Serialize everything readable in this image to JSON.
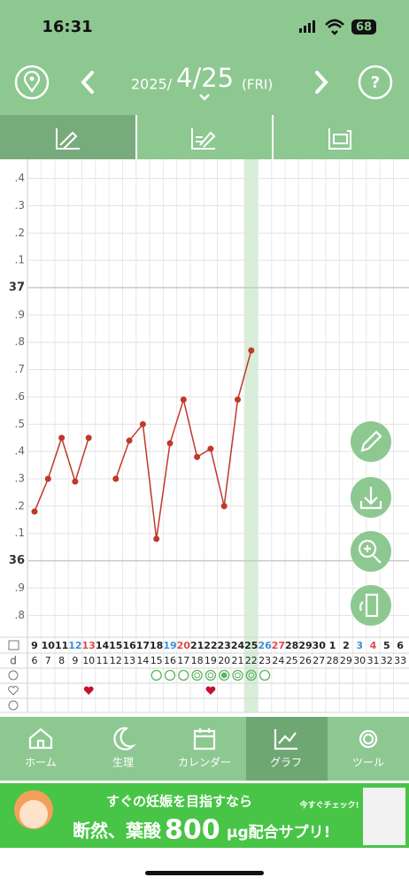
{
  "status_bar": {
    "time": "16:31",
    "battery": "68"
  },
  "header": {
    "year": "2025/",
    "date": "4/25",
    "weekday": "(FRI)"
  },
  "chart_data": {
    "type": "line",
    "color": "#c0392b",
    "categories": [
      "9",
      "10",
      "11",
      "12",
      "13",
      "14",
      "15",
      "16",
      "17",
      "18",
      "19",
      "20",
      "21",
      "22",
      "23",
      "24",
      "25",
      "26",
      "27",
      "28",
      "29",
      "30",
      "1",
      "2",
      "3",
      "4",
      "5",
      "6"
    ],
    "category_colors": [
      "#222",
      "#222",
      "#222",
      "#3b8ed8",
      "#e04848",
      "#222",
      "#222",
      "#222",
      "#222",
      "#222",
      "#3b8ed8",
      "#e04848",
      "#222",
      "#222",
      "#222",
      "#222",
      "#222",
      "#3b8ed8",
      "#e04848",
      "#222",
      "#222",
      "#222",
      "#222",
      "#222",
      "#3b8ed8",
      "#e04848",
      "#222",
      "#222"
    ],
    "cycle_label": "d",
    "cycle_days": [
      6,
      7,
      8,
      9,
      10,
      11,
      12,
      13,
      14,
      15,
      16,
      17,
      18,
      19,
      20,
      21,
      22,
      23,
      24,
      25,
      26,
      27,
      28,
      29,
      30,
      31,
      32,
      33
    ],
    "values": [
      36.18,
      36.3,
      36.45,
      36.29,
      36.45,
      null,
      36.3,
      36.44,
      36.5,
      36.08,
      36.43,
      36.59,
      36.38,
      36.41,
      36.2,
      36.59,
      36.77,
      null,
      null,
      null,
      null,
      null,
      null,
      null,
      null,
      null,
      null,
      null
    ],
    "ylim": [
      35.72,
      37.47
    ],
    "yticks": [
      {
        "value": 35.8,
        "label": ".8"
      },
      {
        "value": 35.9,
        "label": ".9"
      },
      36,
      {
        "value": 36.1,
        "label": ".1"
      },
      {
        "value": 36.2,
        "label": ".2"
      },
      {
        "value": 36.3,
        "label": ".3"
      },
      {
        "value": 36.4,
        "label": ".4"
      },
      {
        "value": 36.5,
        "label": ".5"
      },
      {
        "value": 36.6,
        "label": ".6"
      },
      {
        "value": 36.7,
        "label": ".7"
      },
      {
        "value": 36.8,
        "label": ".8"
      },
      {
        "value": 36.9,
        "label": ".9"
      },
      37,
      {
        "value": 37.1,
        "label": ".1"
      },
      {
        "value": 37.2,
        "label": ".2"
      },
      {
        "value": 37.3,
        "label": ".3"
      },
      {
        "value": 37.4,
        "label": ".4"
      }
    ],
    "grid": true
  },
  "tab_bar": {
    "items": [
      "ホーム",
      "生理",
      "カレンダー",
      "グラフ",
      "ツール"
    ]
  },
  "ad": {
    "line1": "すぐの妊娠を目指すなら",
    "line2a": "断然、葉酸",
    "line2b": "800",
    "line2c": "μg配合サプリ!",
    "badge": "今すぐチェック!"
  }
}
